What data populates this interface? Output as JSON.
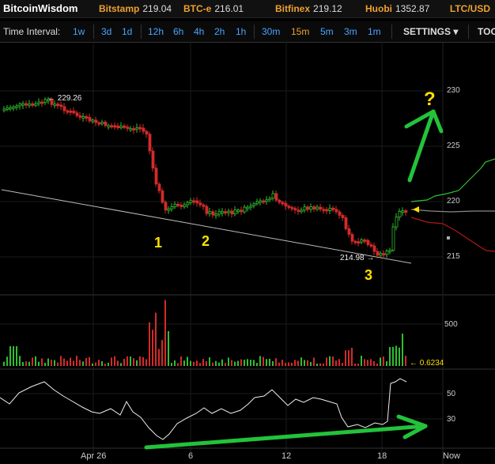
{
  "header": {
    "brand": "BitcoinWisdom",
    "tickers": [
      {
        "exchange": "Bitstamp",
        "price": "219.04"
      },
      {
        "exchange": "BTC-e",
        "price": "216.01"
      },
      {
        "exchange": "Bitfinex",
        "price": "219.12"
      },
      {
        "exchange": "Huobi",
        "price": "1352.87"
      }
    ],
    "pair": "LTC/USD"
  },
  "toolbar": {
    "label": "Time Interval:",
    "intervals": [
      "1w",
      "3d",
      "1d",
      "12h",
      "6h",
      "4h",
      "2h",
      "1h",
      "30m",
      "15m",
      "5m",
      "3m",
      "1m"
    ],
    "active_interval": "15m",
    "settings_label": "SETTINGS ▾",
    "tools_label": "TOO"
  },
  "price_axis": [
    "230",
    "225",
    "220",
    "215"
  ],
  "volume_axis": [
    "500"
  ],
  "osc_axis": [
    "50",
    "30"
  ],
  "time_axis": [
    "Apr 26",
    "6",
    "12",
    "18",
    "Now"
  ],
  "annotations": {
    "high_label": "← 229.26",
    "low_label": "214.98 →",
    "point1": "1",
    "point2": "2",
    "point3": "3",
    "question": "?",
    "volume_readout": "← 0.6234"
  },
  "colors": {
    "up": "#2fbf2f",
    "down": "#d42a2a",
    "annotation": "#ffe000",
    "arrow": "#22c33a",
    "header_accent": "#f0a030",
    "link": "#4aa3ff"
  }
}
